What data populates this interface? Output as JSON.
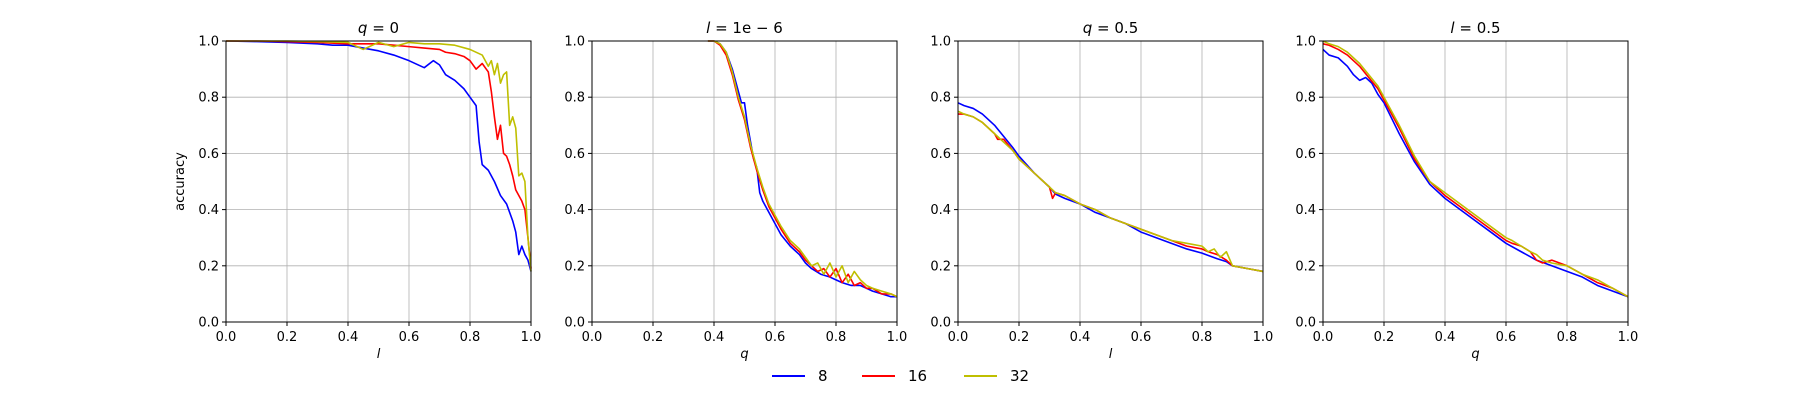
{
  "chart_data": [
    {
      "type": "line",
      "title": "q = 0",
      "title_parts": {
        "var": "q",
        "rest": " = 0"
      },
      "xlabel": "l",
      "ylabel": "accuracy",
      "xlim": [
        0,
        1
      ],
      "ylim": [
        0,
        1
      ],
      "xticks": [
        "0.0",
        "0.2",
        "0.4",
        "0.6",
        "0.8",
        "1.0"
      ],
      "yticks": [
        "0.0",
        "0.2",
        "0.4",
        "0.6",
        "0.8",
        "1.0"
      ],
      "grid": true,
      "series": [
        {
          "name": "8",
          "color": "#0000ff",
          "x": [
            0,
            0.1,
            0.2,
            0.3,
            0.35,
            0.4,
            0.45,
            0.5,
            0.55,
            0.6,
            0.65,
            0.68,
            0.7,
            0.72,
            0.75,
            0.78,
            0.8,
            0.82,
            0.83,
            0.84,
            0.86,
            0.88,
            0.9,
            0.92,
            0.94,
            0.95,
            0.96,
            0.97,
            0.98,
            0.99,
            1.0
          ],
          "y": [
            1.0,
            0.998,
            0.995,
            0.99,
            0.985,
            0.985,
            0.975,
            0.965,
            0.95,
            0.93,
            0.905,
            0.93,
            0.915,
            0.88,
            0.86,
            0.83,
            0.8,
            0.77,
            0.64,
            0.56,
            0.54,
            0.5,
            0.45,
            0.42,
            0.36,
            0.32,
            0.24,
            0.27,
            0.24,
            0.22,
            0.18
          ]
        },
        {
          "name": "16",
          "color": "#ff0000",
          "x": [
            0,
            0.1,
            0.2,
            0.3,
            0.4,
            0.5,
            0.55,
            0.6,
            0.65,
            0.7,
            0.72,
            0.75,
            0.78,
            0.8,
            0.82,
            0.84,
            0.86,
            0.87,
            0.88,
            0.89,
            0.9,
            0.91,
            0.92,
            0.93,
            0.94,
            0.95,
            0.96,
            0.97,
            0.98,
            0.99,
            1.0
          ],
          "y": [
            1.0,
            1.0,
            0.998,
            0.995,
            0.99,
            0.99,
            0.985,
            0.98,
            0.975,
            0.97,
            0.96,
            0.955,
            0.945,
            0.93,
            0.9,
            0.92,
            0.89,
            0.82,
            0.73,
            0.65,
            0.7,
            0.6,
            0.59,
            0.56,
            0.52,
            0.47,
            0.45,
            0.43,
            0.4,
            0.3,
            0.19
          ]
        },
        {
          "name": "32",
          "color": "#bfbf00",
          "x": [
            0,
            0.1,
            0.2,
            0.3,
            0.4,
            0.43,
            0.45,
            0.5,
            0.55,
            0.6,
            0.65,
            0.7,
            0.75,
            0.8,
            0.84,
            0.86,
            0.87,
            0.88,
            0.89,
            0.9,
            0.91,
            0.92,
            0.93,
            0.94,
            0.95,
            0.96,
            0.97,
            0.98,
            0.99,
            1.0
          ],
          "y": [
            1.0,
            1.0,
            1.0,
            0.998,
            0.995,
            0.98,
            0.97,
            0.995,
            0.98,
            0.995,
            0.99,
            0.99,
            0.985,
            0.97,
            0.95,
            0.91,
            0.93,
            0.88,
            0.92,
            0.85,
            0.88,
            0.89,
            0.7,
            0.73,
            0.69,
            0.52,
            0.53,
            0.5,
            0.3,
            0.18
          ]
        }
      ]
    },
    {
      "type": "line",
      "title": "l = 1e − 6",
      "title_parts": {
        "var": "l",
        "rest": " = 1e − 6"
      },
      "xlabel": "q",
      "ylabel": "",
      "xlim": [
        0,
        1
      ],
      "ylim": [
        0,
        1
      ],
      "xticks": [
        "0.0",
        "0.2",
        "0.4",
        "0.6",
        "0.8",
        "1.0"
      ],
      "yticks": [
        "0.0",
        "0.2",
        "0.4",
        "0.6",
        "0.8",
        "1.0"
      ],
      "grid": true,
      "series": [
        {
          "name": "8",
          "color": "#0000ff",
          "x": [
            0.38,
            0.4,
            0.42,
            0.44,
            0.46,
            0.48,
            0.49,
            0.5,
            0.51,
            0.52,
            0.53,
            0.54,
            0.55,
            0.56,
            0.58,
            0.6,
            0.62,
            0.65,
            0.68,
            0.7,
            0.72,
            0.75,
            0.78,
            0.8,
            0.82,
            0.85,
            0.88,
            0.9,
            0.92,
            0.95,
            0.98,
            1.0
          ],
          "y": [
            1.0,
            1.0,
            0.99,
            0.96,
            0.9,
            0.82,
            0.78,
            0.78,
            0.7,
            0.64,
            0.58,
            0.55,
            0.46,
            0.43,
            0.39,
            0.35,
            0.31,
            0.27,
            0.24,
            0.21,
            0.19,
            0.17,
            0.16,
            0.15,
            0.14,
            0.13,
            0.13,
            0.12,
            0.11,
            0.1,
            0.09,
            0.09
          ]
        },
        {
          "name": "16",
          "color": "#ff0000",
          "x": [
            0.38,
            0.4,
            0.42,
            0.44,
            0.46,
            0.48,
            0.5,
            0.52,
            0.54,
            0.56,
            0.58,
            0.6,
            0.62,
            0.65,
            0.68,
            0.7,
            0.72,
            0.74,
            0.76,
            0.78,
            0.8,
            0.82,
            0.84,
            0.86,
            0.88,
            0.9,
            0.92,
            0.95,
            0.98,
            1.0
          ],
          "y": [
            1.0,
            1.0,
            0.985,
            0.95,
            0.88,
            0.79,
            0.72,
            0.62,
            0.54,
            0.47,
            0.41,
            0.37,
            0.33,
            0.28,
            0.25,
            0.22,
            0.2,
            0.18,
            0.19,
            0.16,
            0.19,
            0.14,
            0.17,
            0.13,
            0.14,
            0.12,
            0.12,
            0.1,
            0.1,
            0.09
          ]
        },
        {
          "name": "32",
          "color": "#bfbf00",
          "x": [
            0.38,
            0.4,
            0.42,
            0.44,
            0.46,
            0.48,
            0.5,
            0.52,
            0.54,
            0.56,
            0.58,
            0.6,
            0.62,
            0.65,
            0.68,
            0.7,
            0.72,
            0.74,
            0.76,
            0.78,
            0.8,
            0.82,
            0.84,
            0.86,
            0.88,
            0.9,
            0.92,
            0.95,
            0.98,
            1.0
          ],
          "y": [
            1.0,
            1.0,
            0.99,
            0.96,
            0.89,
            0.8,
            0.73,
            0.63,
            0.55,
            0.48,
            0.42,
            0.38,
            0.34,
            0.29,
            0.26,
            0.23,
            0.2,
            0.21,
            0.17,
            0.21,
            0.16,
            0.2,
            0.14,
            0.18,
            0.15,
            0.13,
            0.12,
            0.11,
            0.1,
            0.09
          ]
        }
      ]
    },
    {
      "type": "line",
      "title": "q = 0.5",
      "title_parts": {
        "var": "q",
        "rest": " = 0.5"
      },
      "xlabel": "l",
      "ylabel": "",
      "xlim": [
        0,
        1
      ],
      "ylim": [
        0,
        1
      ],
      "xticks": [
        "0.0",
        "0.2",
        "0.4",
        "0.6",
        "0.8",
        "1.0"
      ],
      "yticks": [
        "0.0",
        "0.2",
        "0.4",
        "0.6",
        "0.8",
        "1.0"
      ],
      "grid": true,
      "series": [
        {
          "name": "8",
          "color": "#0000ff",
          "x": [
            0,
            0.02,
            0.05,
            0.08,
            0.1,
            0.12,
            0.15,
            0.18,
            0.2,
            0.25,
            0.3,
            0.32,
            0.35,
            0.4,
            0.45,
            0.5,
            0.55,
            0.6,
            0.65,
            0.7,
            0.75,
            0.8,
            0.85,
            0.88,
            0.9,
            0.95,
            1.0
          ],
          "y": [
            0.78,
            0.77,
            0.76,
            0.74,
            0.72,
            0.7,
            0.66,
            0.62,
            0.59,
            0.53,
            0.48,
            0.455,
            0.44,
            0.42,
            0.39,
            0.37,
            0.35,
            0.32,
            0.3,
            0.28,
            0.26,
            0.245,
            0.225,
            0.215,
            0.2,
            0.19,
            0.18
          ]
        },
        {
          "name": "16",
          "color": "#ff0000",
          "x": [
            0,
            0.02,
            0.05,
            0.08,
            0.1,
            0.12,
            0.13,
            0.15,
            0.18,
            0.2,
            0.25,
            0.3,
            0.31,
            0.32,
            0.35,
            0.4,
            0.45,
            0.5,
            0.55,
            0.6,
            0.65,
            0.7,
            0.75,
            0.8,
            0.82,
            0.85,
            0.88,
            0.9,
            0.95,
            1.0
          ],
          "y": [
            0.74,
            0.74,
            0.73,
            0.71,
            0.69,
            0.67,
            0.65,
            0.65,
            0.61,
            0.58,
            0.53,
            0.48,
            0.44,
            0.46,
            0.45,
            0.42,
            0.4,
            0.37,
            0.35,
            0.33,
            0.31,
            0.29,
            0.27,
            0.26,
            0.25,
            0.24,
            0.22,
            0.2,
            0.19,
            0.18
          ]
        },
        {
          "name": "32",
          "color": "#bfbf00",
          "x": [
            0,
            0.02,
            0.05,
            0.08,
            0.1,
            0.12,
            0.15,
            0.18,
            0.2,
            0.25,
            0.3,
            0.32,
            0.35,
            0.4,
            0.45,
            0.5,
            0.55,
            0.6,
            0.65,
            0.7,
            0.75,
            0.8,
            0.82,
            0.84,
            0.86,
            0.88,
            0.9,
            0.95,
            1.0
          ],
          "y": [
            0.75,
            0.74,
            0.73,
            0.71,
            0.69,
            0.67,
            0.64,
            0.61,
            0.58,
            0.53,
            0.48,
            0.46,
            0.45,
            0.42,
            0.4,
            0.37,
            0.35,
            0.33,
            0.31,
            0.29,
            0.28,
            0.27,
            0.25,
            0.26,
            0.23,
            0.25,
            0.2,
            0.19,
            0.18
          ]
        }
      ]
    },
    {
      "type": "line",
      "title": "l = 0.5",
      "title_parts": {
        "var": "l",
        "rest": " = 0.5"
      },
      "xlabel": "q",
      "ylabel": "",
      "xlim": [
        0,
        1
      ],
      "ylim": [
        0,
        1
      ],
      "xticks": [
        "0.0",
        "0.2",
        "0.4",
        "0.6",
        "0.8",
        "1.0"
      ],
      "yticks": [
        "0.0",
        "0.2",
        "0.4",
        "0.6",
        "0.8",
        "1.0"
      ],
      "grid": true,
      "series": [
        {
          "name": "8",
          "color": "#0000ff",
          "x": [
            0,
            0.02,
            0.05,
            0.08,
            0.1,
            0.12,
            0.14,
            0.16,
            0.18,
            0.2,
            0.25,
            0.3,
            0.35,
            0.4,
            0.45,
            0.5,
            0.55,
            0.6,
            0.65,
            0.7,
            0.75,
            0.8,
            0.85,
            0.9,
            0.95,
            1.0
          ],
          "y": [
            0.97,
            0.95,
            0.94,
            0.91,
            0.88,
            0.86,
            0.87,
            0.85,
            0.81,
            0.78,
            0.67,
            0.57,
            0.49,
            0.44,
            0.4,
            0.36,
            0.32,
            0.28,
            0.25,
            0.22,
            0.2,
            0.18,
            0.16,
            0.13,
            0.11,
            0.09
          ]
        },
        {
          "name": "16",
          "color": "#ff0000",
          "x": [
            0,
            0.02,
            0.05,
            0.08,
            0.1,
            0.12,
            0.15,
            0.18,
            0.2,
            0.25,
            0.3,
            0.35,
            0.4,
            0.45,
            0.5,
            0.55,
            0.6,
            0.62,
            0.65,
            0.68,
            0.7,
            0.72,
            0.75,
            0.8,
            0.85,
            0.9,
            0.95,
            1.0
          ],
          "y": [
            0.99,
            0.985,
            0.97,
            0.95,
            0.93,
            0.91,
            0.87,
            0.83,
            0.79,
            0.69,
            0.58,
            0.5,
            0.45,
            0.41,
            0.37,
            0.33,
            0.29,
            0.28,
            0.27,
            0.25,
            0.22,
            0.21,
            0.22,
            0.2,
            0.17,
            0.14,
            0.12,
            0.09
          ]
        },
        {
          "name": "32",
          "color": "#bfbf00",
          "x": [
            0,
            0.02,
            0.05,
            0.08,
            0.1,
            0.12,
            0.15,
            0.18,
            0.2,
            0.25,
            0.3,
            0.35,
            0.4,
            0.45,
            0.5,
            0.55,
            0.6,
            0.62,
            0.65,
            0.68,
            0.7,
            0.72,
            0.75,
            0.8,
            0.85,
            0.9,
            0.95,
            1.0
          ],
          "y": [
            1.0,
            0.99,
            0.98,
            0.96,
            0.94,
            0.92,
            0.88,
            0.84,
            0.8,
            0.7,
            0.59,
            0.5,
            0.46,
            0.42,
            0.38,
            0.34,
            0.3,
            0.29,
            0.27,
            0.25,
            0.24,
            0.22,
            0.21,
            0.2,
            0.17,
            0.15,
            0.12,
            0.09
          ]
        }
      ]
    }
  ],
  "legend": {
    "placement": "bottom-center",
    "entries": [
      {
        "label": "8",
        "color": "#0000ff"
      },
      {
        "label": "16",
        "color": "#ff0000"
      },
      {
        "label": "32",
        "color": "#bfbf00"
      }
    ]
  }
}
